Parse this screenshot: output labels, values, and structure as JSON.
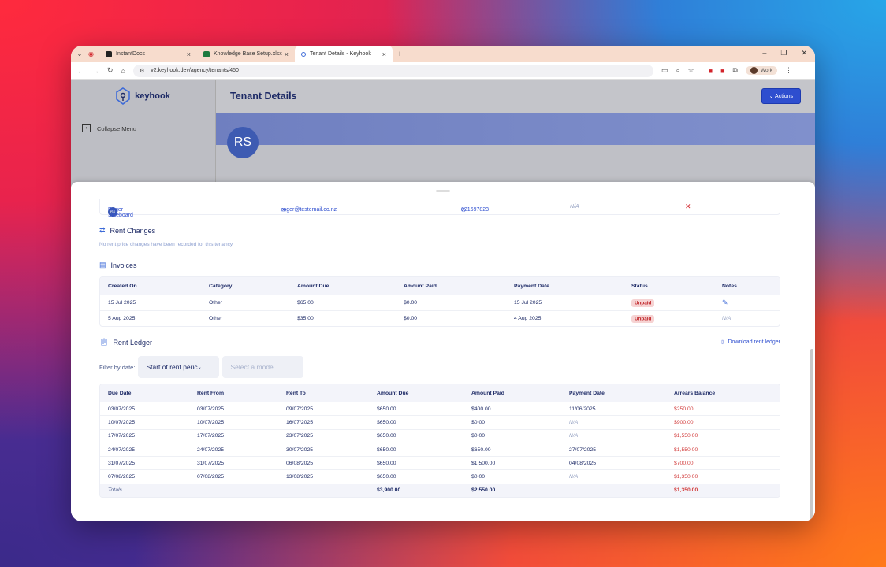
{
  "browser": {
    "tabs": [
      {
        "label": "InstantDocs"
      },
      {
        "label": "Knowledge Base Setup.xlsx"
      },
      {
        "label": "Tenant Details - Keyhook"
      }
    ],
    "url": "v2.keyhook.dev/agency/tenants/450",
    "profile": "Work"
  },
  "app": {
    "logo": "keyhook",
    "collapse_label": "Collapse Menu",
    "page_title": "Tenant Details",
    "actions_label": "Actions",
    "avatar_initials": "RS"
  },
  "tenant": {
    "initials": "RS",
    "name": "Roger Sideboard",
    "email": "roger@testemail.co.nz",
    "phone": "021697823",
    "extra": "N/A"
  },
  "rent_changes": {
    "title": "Rent Changes",
    "empty": "No rent price changes have been recorded for this tenancy."
  },
  "invoices": {
    "title": "Invoices",
    "headers": [
      "Created On",
      "Category",
      "Amount Due",
      "Amount Paid",
      "Payment Date",
      "Status",
      "Notes"
    ],
    "rows": [
      {
        "created": "15 Jul 2025",
        "category": "Other",
        "due": "$65.00",
        "paid": "$0.00",
        "date": "15 Jul 2025",
        "status": "Unpaid",
        "notes": ""
      },
      {
        "created": "5 Aug 2025",
        "category": "Other",
        "due": "$35.00",
        "paid": "$0.00",
        "date": "4 Aug 2025",
        "status": "Unpaid",
        "notes": "N/A"
      }
    ]
  },
  "ledger": {
    "title": "Rent Ledger",
    "download": "Download rent ledger",
    "filter_label": "Filter by date:",
    "filter_value": "Start of rent peric",
    "mode_placeholder": "Select a mode...",
    "headers": [
      "Due Date",
      "Rent From",
      "Rent To",
      "Amount Due",
      "Amount Paid",
      "Payment Date",
      "Arrears Balance"
    ],
    "rows": [
      [
        "03/07/2025",
        "03/07/2025",
        "09/07/2025",
        "$650.00",
        "$400.00",
        "11/06/2025",
        "$250.00"
      ],
      [
        "10/07/2025",
        "10/07/2025",
        "16/07/2025",
        "$650.00",
        "$0.00",
        "N/A",
        "$900.00"
      ],
      [
        "17/07/2025",
        "17/07/2025",
        "23/07/2025",
        "$650.00",
        "$0.00",
        "N/A",
        "$1,550.00"
      ],
      [
        "24/07/2025",
        "24/07/2025",
        "30/07/2025",
        "$650.00",
        "$650.00",
        "27/07/2025",
        "$1,550.00"
      ],
      [
        "31/07/2025",
        "31/07/2025",
        "06/08/2025",
        "$650.00",
        "$1,500.00",
        "04/08/2025",
        "$700.00"
      ],
      [
        "07/08/2025",
        "07/08/2025",
        "13/08/2025",
        "$650.00",
        "$0.00",
        "N/A",
        "$1,350.00"
      ]
    ],
    "totals": {
      "label": "Totals",
      "due": "$3,900.00",
      "paid": "$2,550.00",
      "arrears": "$1,350.00"
    }
  }
}
